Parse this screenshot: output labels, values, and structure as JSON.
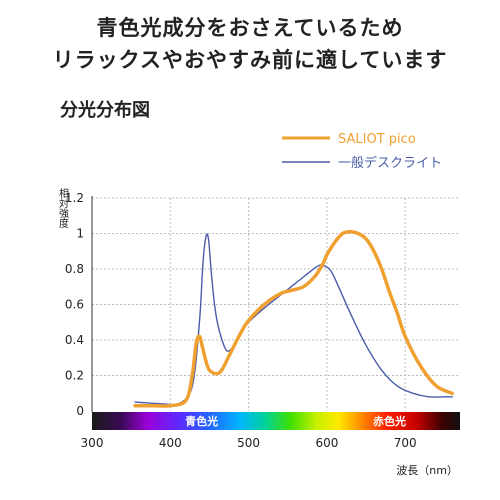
{
  "headline": {
    "line1": "青色光成分をおさえているため",
    "line2": "リラックスやおやすみ前に適しています"
  },
  "section_title": "分光分布図",
  "colors": {
    "saliot": "#f0a030",
    "desk": "#4a5ca8",
    "grid": "#bdbdbd",
    "axis": "#333333"
  },
  "spectrum_bar": {
    "blue_label": "青色光",
    "red_label": "赤色光"
  },
  "chart_data": {
    "type": "line",
    "title": "",
    "xlabel": "波長（nm）",
    "ylabel": "相対強度",
    "xlim": [
      300,
      770
    ],
    "ylim": [
      0,
      1.2
    ],
    "x_ticks": [
      300,
      400,
      500,
      600,
      700
    ],
    "y_ticks": [
      0,
      0.2,
      0.4,
      0.6,
      0.8,
      1,
      1.2
    ],
    "y_tick_labels": [
      "0",
      "0.2",
      "0.4",
      "0.6",
      "0.8",
      "1",
      "1.2"
    ],
    "grid": true,
    "legend_position": "top-right",
    "series": [
      {
        "name": "SALIOT pico",
        "color": "#f0a030",
        "x": [
          355,
          380,
          400,
          420,
          428,
          433,
          437,
          440,
          445,
          450,
          460,
          467,
          475,
          490,
          500,
          520,
          540,
          555,
          570,
          585,
          595,
          600,
          610,
          620,
          630,
          640,
          650,
          660,
          670,
          680,
          690,
          700,
          720,
          740,
          760
        ],
        "y": [
          0.03,
          0.03,
          0.03,
          0.06,
          0.2,
          0.38,
          0.42,
          0.38,
          0.29,
          0.23,
          0.21,
          0.24,
          0.31,
          0.44,
          0.51,
          0.6,
          0.66,
          0.68,
          0.7,
          0.76,
          0.83,
          0.88,
          0.95,
          1.0,
          1.01,
          1.0,
          0.97,
          0.9,
          0.8,
          0.67,
          0.55,
          0.42,
          0.25,
          0.14,
          0.1
        ]
      },
      {
        "name": "一般デスクライト",
        "color": "#4a5ca8",
        "x": [
          355,
          390,
          410,
          425,
          432,
          438,
          442,
          446,
          449,
          452,
          456,
          460,
          466,
          472,
          478,
          485,
          492,
          500,
          520,
          540,
          560,
          580,
          590,
          595,
          600,
          605,
          615,
          630,
          650,
          670,
          690,
          710,
          730,
          750,
          760
        ],
        "y": [
          0.05,
          0.04,
          0.04,
          0.1,
          0.25,
          0.55,
          0.85,
          0.99,
          0.96,
          0.8,
          0.62,
          0.5,
          0.4,
          0.34,
          0.35,
          0.4,
          0.45,
          0.5,
          0.58,
          0.65,
          0.72,
          0.79,
          0.82,
          0.82,
          0.81,
          0.79,
          0.7,
          0.55,
          0.37,
          0.23,
          0.14,
          0.1,
          0.08,
          0.08,
          0.08
        ]
      }
    ]
  }
}
